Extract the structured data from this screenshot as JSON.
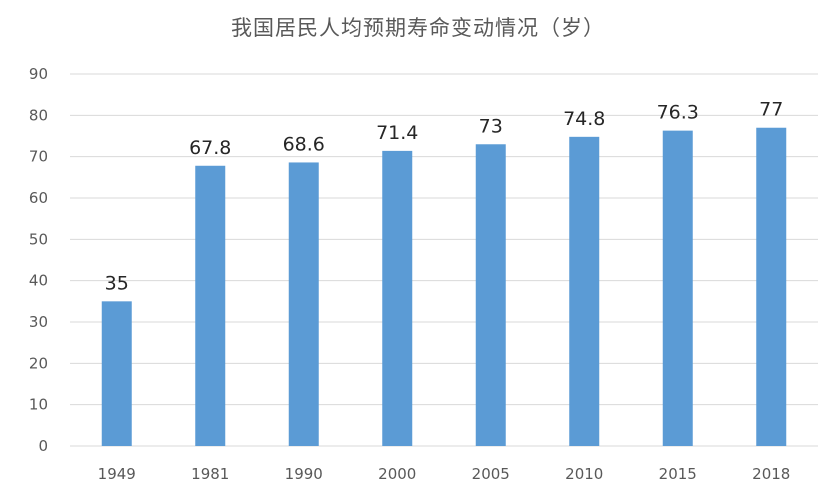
{
  "chart_data": {
    "type": "bar",
    "title": "我国居民人均预期寿命变动情况（岁）",
    "categories": [
      "1949",
      "1981",
      "1990",
      "2000",
      "2005",
      "2010",
      "2015",
      "2018"
    ],
    "values": [
      35,
      67.8,
      68.6,
      71.4,
      73,
      74.8,
      76.3,
      77
    ],
    "value_labels": [
      "35",
      "67.8",
      "68.6",
      "71.4",
      "73",
      "74.8",
      "76.3",
      "77"
    ],
    "ylim": [
      0,
      90
    ],
    "yticks": [
      0,
      10,
      20,
      30,
      40,
      50,
      60,
      70,
      80,
      90
    ],
    "grid": true,
    "bar_color": "#5b9bd5",
    "grid_color": "#d9d9d9",
    "text_color": "#595959"
  }
}
